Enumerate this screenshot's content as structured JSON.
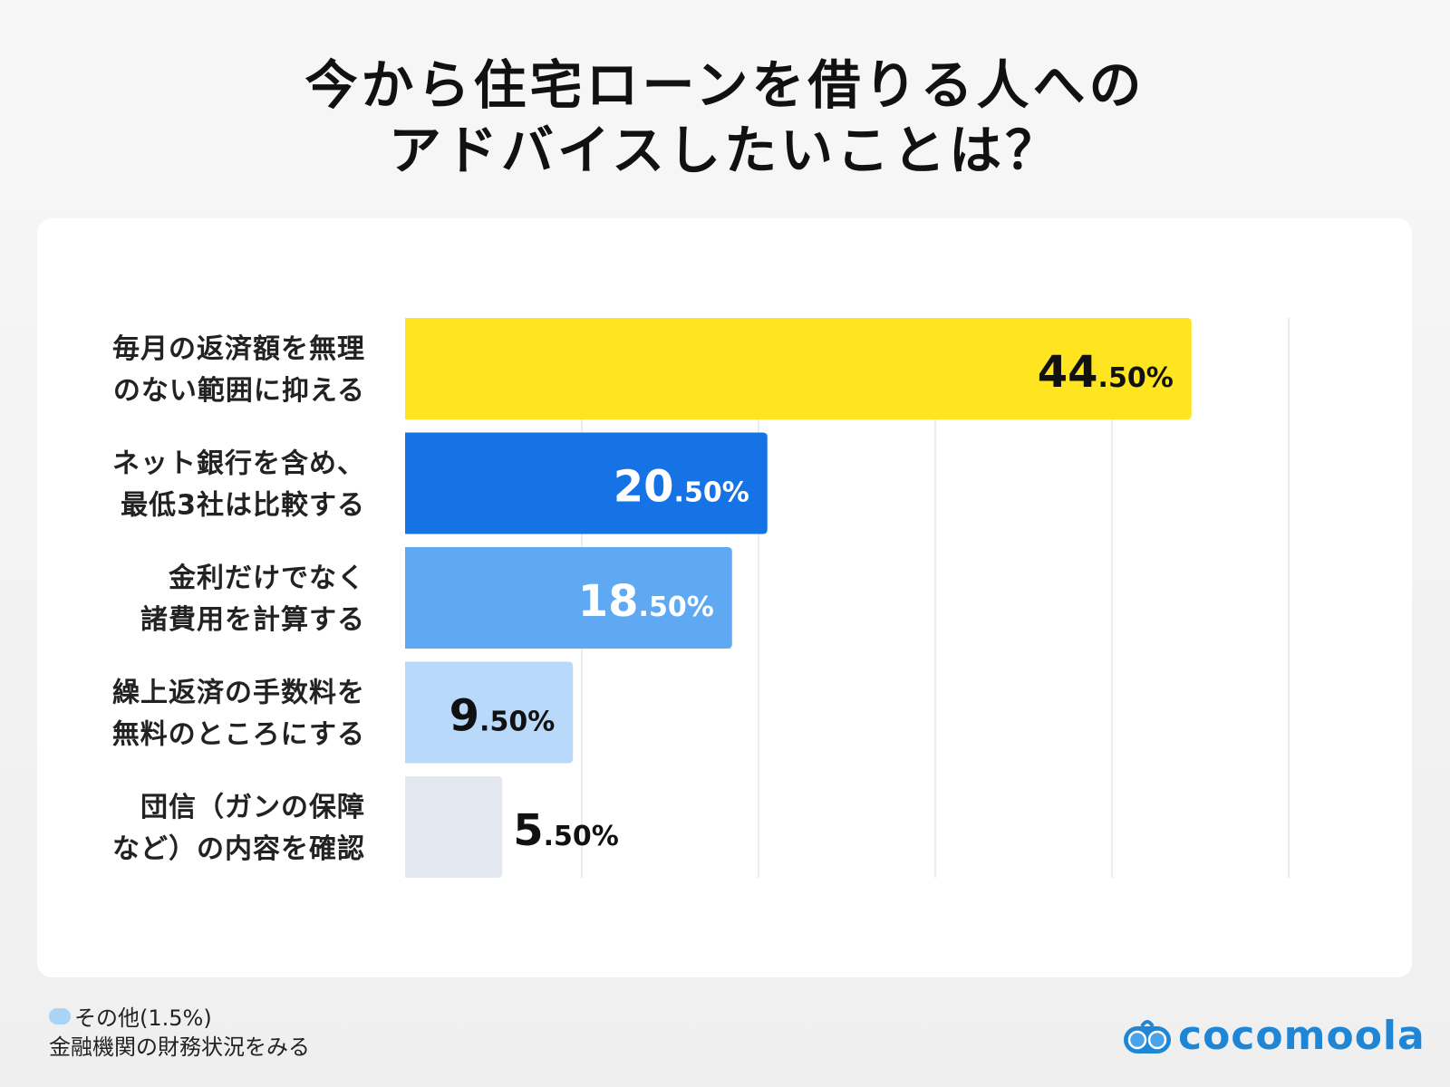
{
  "chart_data": {
    "type": "bar",
    "orientation": "horizontal",
    "title": "今から住宅ローンを借りる人への\nアドバイスしたいことは？",
    "title_lines": [
      "今から住宅ローンを借りる人への",
      "アドバイスしたいことは？"
    ],
    "categories": [
      [
        "毎月の返済額を無理",
        "のない範囲に抑える"
      ],
      [
        "ネット銀行を含め、",
        "最低3社は比較する"
      ],
      [
        "金利だけでなく",
        "諸費用を計算する"
      ],
      [
        "繰上返済の手数料を",
        "無料のところにする"
      ],
      [
        "団信（ガンの保障",
        "など）の内容を確認"
      ]
    ],
    "values": [
      44.5,
      20.5,
      18.5,
      9.5,
      5.5
    ],
    "data_labels": [
      [
        "44",
        ".50%"
      ],
      [
        "20",
        ".50%"
      ],
      [
        "18",
        ".50%"
      ],
      [
        "9",
        ".50%"
      ],
      [
        "5",
        ".50%"
      ]
    ],
    "colors": [
      "#FFE520",
      "#1573E5",
      "#5EA9F1",
      "#B9D9FA",
      "#E3E8F0"
    ],
    "label_colors": [
      "#111111",
      "#ffffff",
      "#ffffff",
      "#111111",
      "#111111"
    ],
    "xlim": [
      0,
      50
    ],
    "grid": true,
    "grid_step": 10,
    "legend": "none"
  },
  "footnote": {
    "line1": "その他(1.5%)",
    "line2": "金融機関の財務状況をみる"
  },
  "logo": {
    "text": "cocomoola",
    "color": "#1f86d6"
  }
}
